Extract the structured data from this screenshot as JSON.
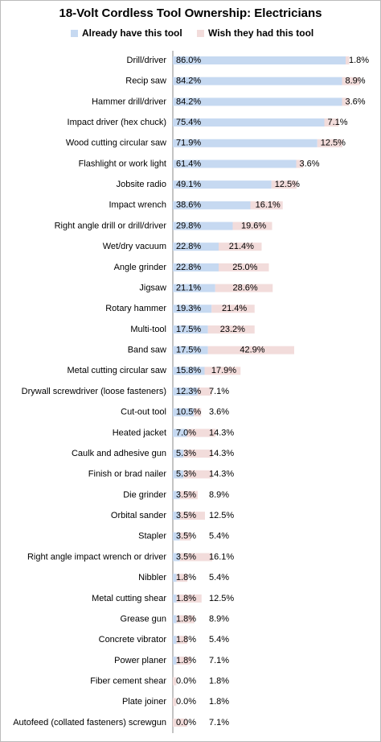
{
  "chart_data": {
    "type": "stacked-bar",
    "orientation": "horizontal",
    "title": "18-Volt Cordless Tool Ownership: Electricians",
    "categories": [
      "Drill/driver",
      "Recip saw",
      "Hammer drill/driver",
      "Impact driver (hex chuck)",
      "Wood cutting circular saw",
      "Flashlight or work light",
      "Jobsite radio",
      "Impact wrench",
      "Right angle drill or drill/driver",
      "Wet/dry vacuum",
      "Angle grinder",
      "Jigsaw",
      "Rotary hammer",
      "Multi-tool",
      "Band saw",
      "Metal cutting circular saw",
      "Drywall screwdriver (loose fasteners)",
      "Cut-out tool",
      "Heated jacket",
      "Caulk and adhesive gun",
      "Finish or brad nailer",
      "Die grinder",
      "Orbital sander",
      "Stapler",
      "Right angle impact wrench or driver",
      "Nibbler",
      "Metal cutting shear",
      "Grease gun",
      "Concrete vibrator",
      "Power planer",
      "Fiber cement shear",
      "Plate joiner",
      "Autofeed (collated fasteners) screwgun"
    ],
    "series": [
      {
        "name": "Already have this tool",
        "color": "#c6d9f1",
        "values": [
          86.0,
          84.2,
          84.2,
          75.4,
          71.9,
          61.4,
          49.1,
          38.6,
          29.8,
          22.8,
          22.8,
          21.1,
          19.3,
          17.5,
          17.5,
          15.8,
          12.3,
          10.5,
          7.0,
          5.3,
          5.3,
          3.5,
          3.5,
          3.5,
          3.5,
          1.8,
          1.8,
          1.8,
          1.8,
          1.8,
          0.0,
          0.0,
          0.0
        ],
        "value_labels": [
          "86.0%",
          "84.2%",
          "84.2%",
          "75.4%",
          "71.9%",
          "61.4%",
          "49.1%",
          "38.6%",
          "29.8%",
          "22.8%",
          "22.8%",
          "21.1%",
          "19.3%",
          "17.5%",
          "17.5%",
          "15.8%",
          "12.3%",
          "10.5%",
          "7.0%",
          "5.3%",
          "5.3%",
          "3.5%",
          "3.5%",
          "3.5%",
          "3.5%",
          "1.8%",
          "1.8%",
          "1.8%",
          "1.8%",
          "1.8%",
          "0.0%",
          "0.0%",
          "0.0%"
        ]
      },
      {
        "name": "Wish they had this tool",
        "color": "#f2dcdb",
        "values": [
          1.8,
          8.9,
          3.6,
          7.1,
          12.5,
          3.6,
          12.5,
          16.1,
          19.6,
          21.4,
          25.0,
          28.6,
          21.4,
          23.2,
          42.9,
          17.9,
          7.1,
          3.6,
          14.3,
          14.3,
          14.3,
          8.9,
          12.5,
          5.4,
          16.1,
          5.4,
          12.5,
          8.9,
          5.4,
          7.1,
          1.8,
          1.8,
          7.1
        ],
        "value_labels": [
          "1.8%",
          "8.9%",
          "3.6%",
          "7.1%",
          "12.5%",
          "3.6%",
          "12.5%",
          "16.1%",
          "19.6%",
          "21.4%",
          "25.0%",
          "28.6%",
          "21.4%",
          "23.2%",
          "42.9%",
          "17.9%",
          "7.1%",
          "3.6%",
          "14.3%",
          "14.3%",
          "14.3%",
          "8.9%",
          "12.5%",
          "5.4%",
          "16.1%",
          "5.4%",
          "12.5%",
          "8.9%",
          "5.4%",
          "7.1%",
          "1.8%",
          "1.8%",
          "7.1%"
        ]
      }
    ],
    "legend": "top"
  }
}
